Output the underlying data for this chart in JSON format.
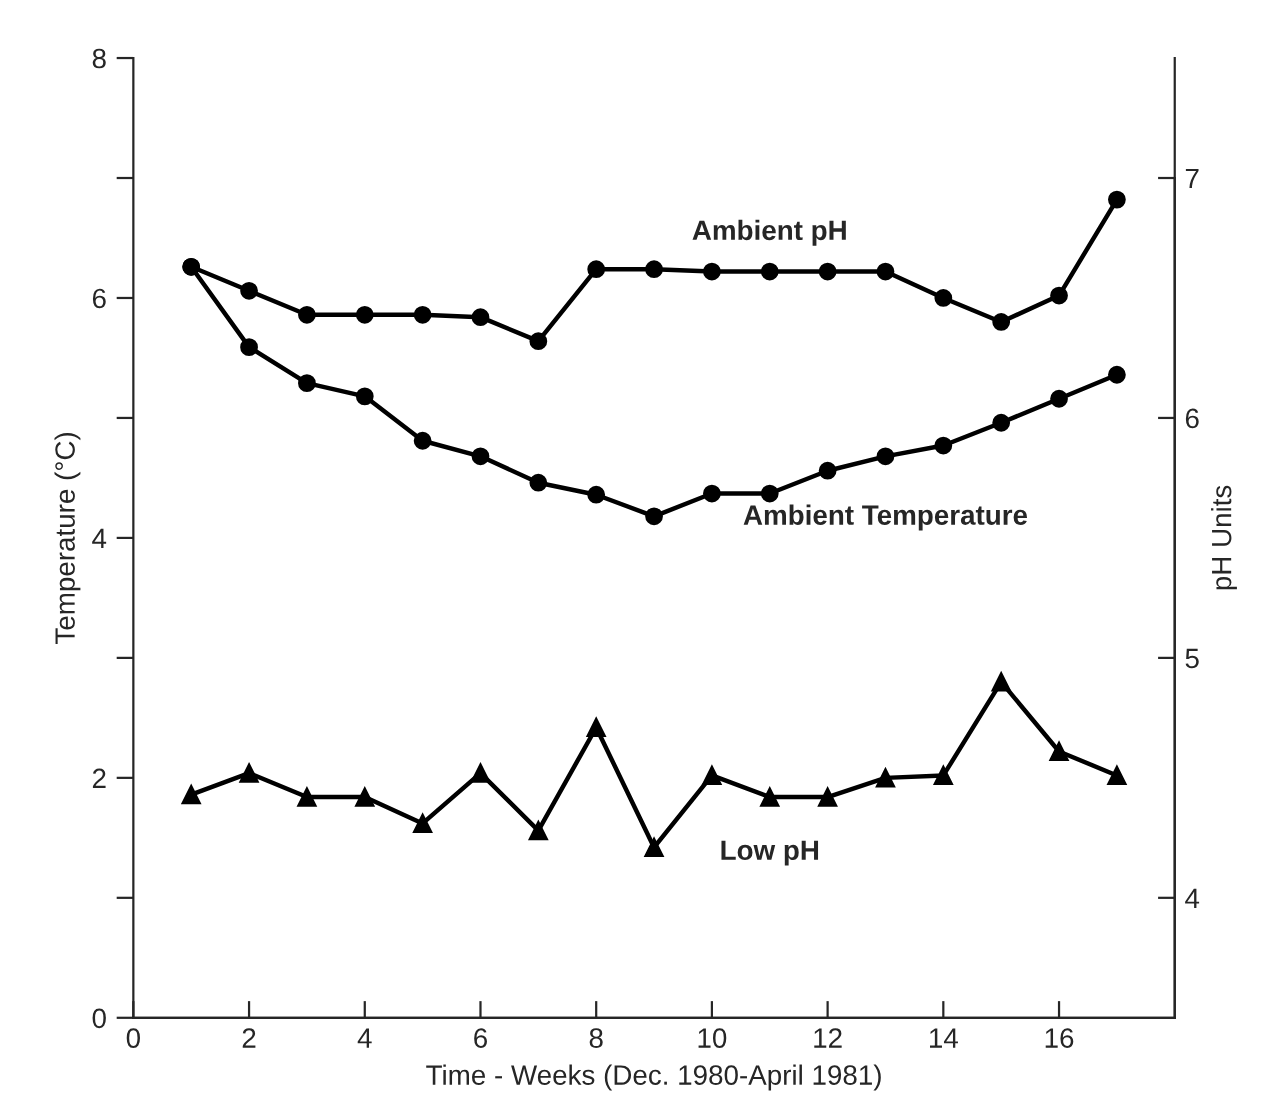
{
  "chart_data": {
    "type": "line",
    "xlabel": "Time - Weeks (Dec. 1980-April 1981)",
    "ylabel": "Temperature (°C)",
    "y2label": "pH Units",
    "x": [
      1,
      2,
      3,
      4,
      5,
      6,
      7,
      8,
      9,
      10,
      11,
      12,
      13,
      14,
      15,
      16,
      17
    ],
    "series": [
      {
        "name": "Ambient Temperature",
        "color": "#000000",
        "marker": "circle",
        "axis": "y",
        "values": [
          6.26,
          5.59,
          5.29,
          5.18,
          4.81,
          4.68,
          4.46,
          4.36,
          4.18,
          4.37,
          4.37,
          4.56,
          4.68,
          4.77,
          4.96,
          5.16,
          5.36
        ]
      },
      {
        "name": "Ambient pH",
        "color": "#000000",
        "marker": "circle",
        "axis": "y2",
        "values": [
          6.63,
          6.53,
          6.43,
          6.43,
          6.43,
          6.42,
          6.32,
          6.62,
          6.62,
          6.61,
          6.61,
          6.61,
          6.61,
          6.5,
          6.4,
          6.51,
          6.91
        ]
      },
      {
        "name": "Low pH",
        "color": "#000000",
        "marker": "triangle",
        "axis": "y2",
        "values": [
          4.43,
          4.52,
          4.42,
          4.42,
          4.31,
          4.52,
          4.28,
          4.71,
          4.21,
          4.51,
          4.42,
          4.42,
          4.5,
          4.51,
          4.9,
          4.61,
          4.51
        ]
      }
    ],
    "xlim": [
      0,
      18
    ],
    "xticks": [
      0,
      2,
      4,
      6,
      8,
      10,
      12,
      14,
      16
    ],
    "ylim": [
      0,
      8
    ],
    "yticks": [
      0,
      {
        "value": 1,
        "label": null
      },
      2,
      {
        "value": 3,
        "label": null
      },
      4,
      {
        "value": 5,
        "label": null
      },
      6,
      {
        "value": 7,
        "label": null
      },
      8
    ],
    "y2lim": [
      3.5,
      7.5
    ],
    "y2ticks": [
      4,
      5,
      6,
      7
    ],
    "line_style": "solid",
    "grid": false,
    "legend": false
  }
}
